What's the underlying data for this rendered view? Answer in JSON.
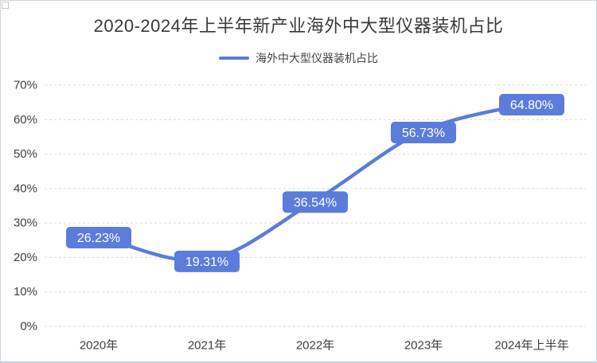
{
  "chart_data": {
    "type": "line",
    "title": "2020-2024年上半年新产业海外中大型仪器装机占比",
    "categories": [
      "2020年",
      "2021年",
      "2022年",
      "2023年",
      "2024年上半年"
    ],
    "series": [
      {
        "name": "海外中大型仪器装机占比",
        "values": [
          26.23,
          19.31,
          36.54,
          56.73,
          64.8
        ]
      }
    ],
    "data_labels": [
      "26.23%",
      "19.31%",
      "36.54%",
      "56.73%",
      "64.80%"
    ],
    "xlabel": "",
    "ylabel": "",
    "ylim": [
      0,
      70
    ],
    "ytick_step": 10,
    "ytick_labels": [
      "0%",
      "10%",
      "20%",
      "30%",
      "40%",
      "50%",
      "60%",
      "70%"
    ],
    "grid": "horizontal-dashed",
    "legend_position": "top",
    "line_style": "smooth",
    "colors": {
      "series": "#5b7cdb",
      "label_bg": "#5b7cdb",
      "label_text": "#ffffff",
      "grid": "#d9d9d9",
      "axis_text": "#404040",
      "title_text": "#3a3a3a",
      "background": "#ffffff"
    }
  }
}
